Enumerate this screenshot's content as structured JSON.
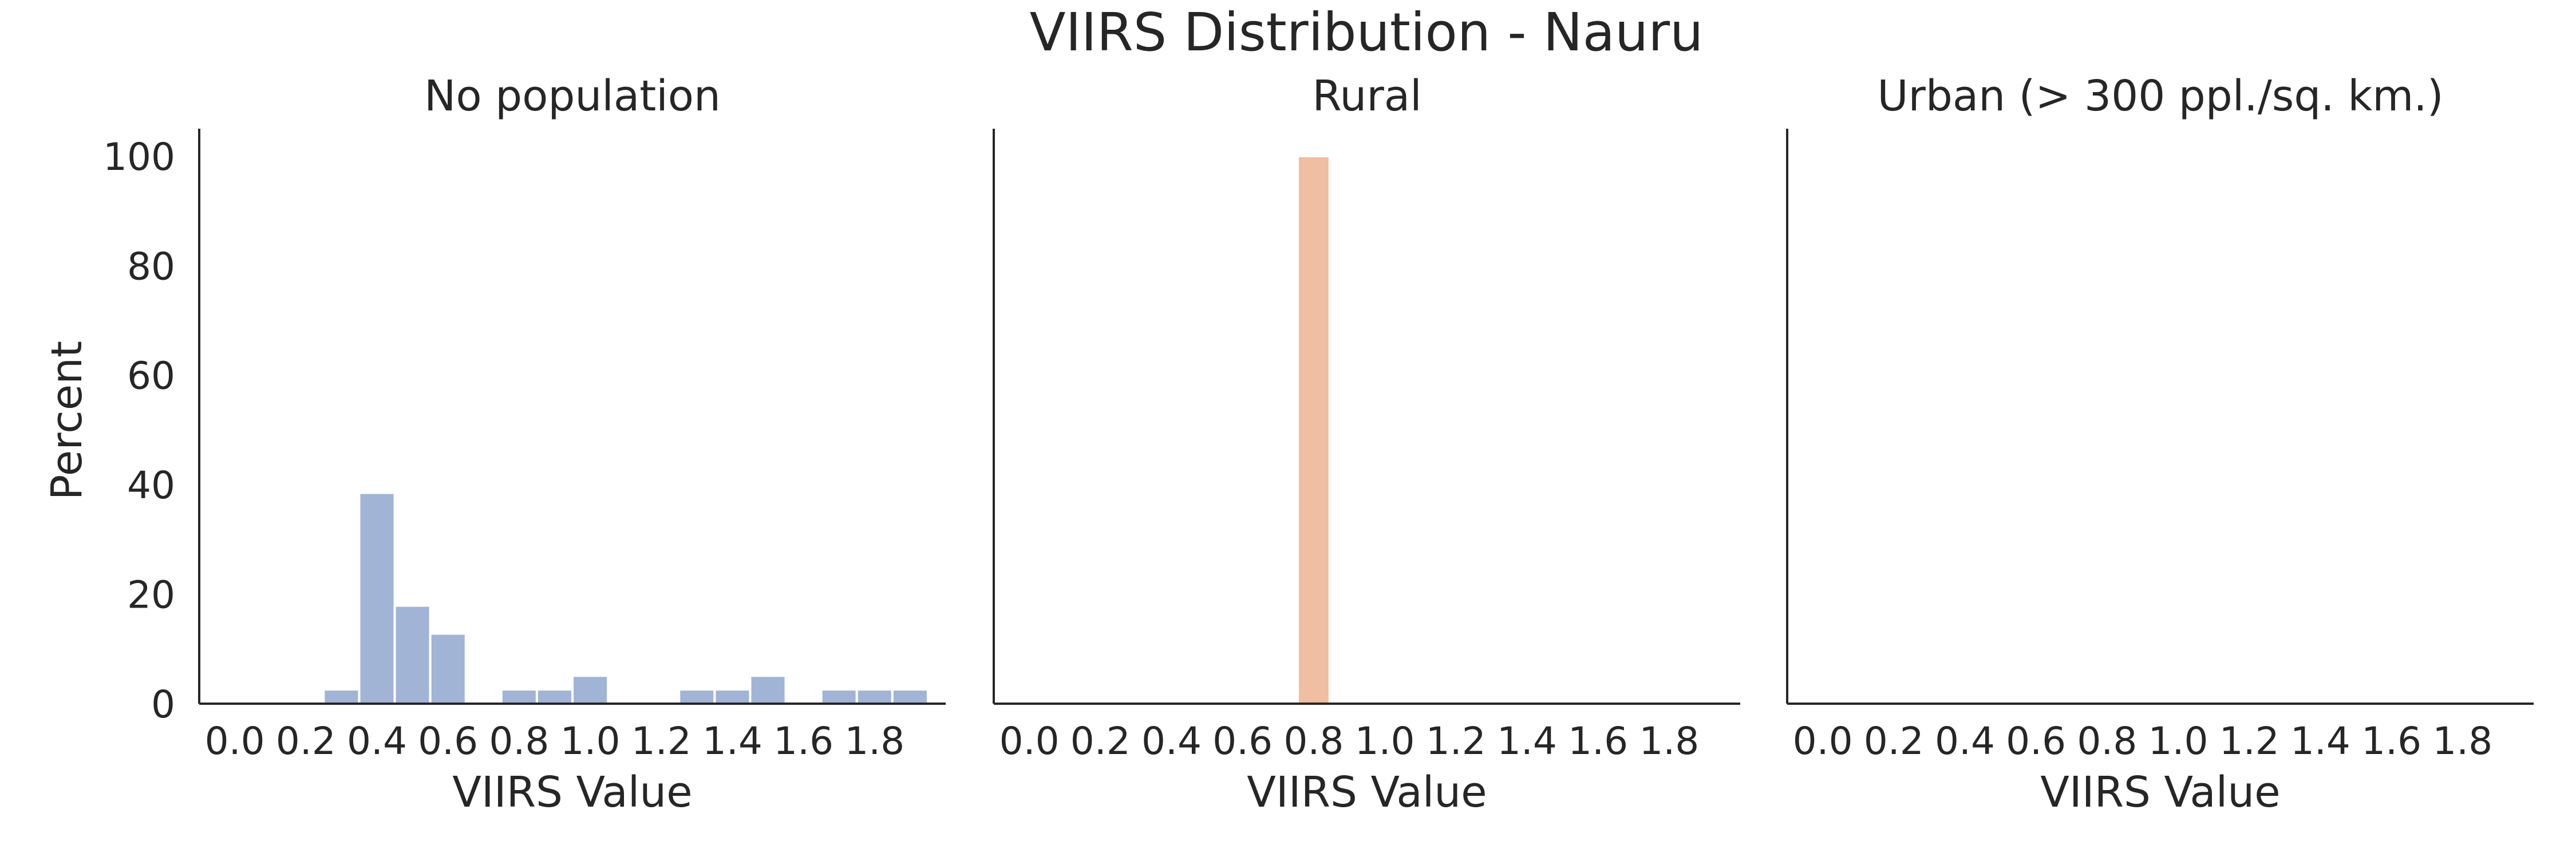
{
  "title": "VIIRS Distribution - Nauru",
  "ylabel": "Percent",
  "chart_data": [
    {
      "type": "bar",
      "title": "No population",
      "xlabel": "VIIRS Value",
      "ylabel": "Percent",
      "color": "#a1b4d6",
      "bin_width": 0.1,
      "x_ticks": [
        "0.0",
        "0.2",
        "0.4",
        "0.6",
        "0.8",
        "1.0",
        "1.2",
        "1.4",
        "1.6",
        "1.8"
      ],
      "y_ticks": [
        "0",
        "20",
        "40",
        "60",
        "80",
        "100"
      ],
      "xlim": [
        -0.1,
        2.0
      ],
      "ylim": [
        0,
        105
      ],
      "grid": false,
      "bins": [
        {
          "x": 0.3,
          "value": 2.6
        },
        {
          "x": 0.4,
          "value": 38.5
        },
        {
          "x": 0.5,
          "value": 17.9
        },
        {
          "x": 0.6,
          "value": 12.8
        },
        {
          "x": 0.8,
          "value": 2.6
        },
        {
          "x": 0.9,
          "value": 2.6
        },
        {
          "x": 1.0,
          "value": 5.1
        },
        {
          "x": 1.3,
          "value": 2.6
        },
        {
          "x": 1.4,
          "value": 2.6
        },
        {
          "x": 1.5,
          "value": 5.1
        },
        {
          "x": 1.7,
          "value": 2.6
        },
        {
          "x": 1.8,
          "value": 2.6
        },
        {
          "x": 1.9,
          "value": 2.6
        }
      ]
    },
    {
      "type": "bar",
      "title": "Rural",
      "xlabel": "VIIRS Value",
      "color": "#f0bea0",
      "bin_width": 0.09,
      "x_ticks": [
        "0.0",
        "0.2",
        "0.4",
        "0.6",
        "0.8",
        "1.0",
        "1.2",
        "1.4",
        "1.6",
        "1.8"
      ],
      "xlim": [
        -0.1,
        2.0
      ],
      "ylim": [
        0,
        105
      ],
      "grid": false,
      "bins": [
        {
          "x": 0.8,
          "value": 100
        }
      ]
    },
    {
      "type": "bar",
      "title": "Urban (> 300 ppl./sq. km.)",
      "xlabel": "VIIRS Value",
      "color": "#8fc3a0",
      "bin_width": 0.1,
      "x_ticks": [
        "0.0",
        "0.2",
        "0.4",
        "0.6",
        "0.8",
        "1.0",
        "1.2",
        "1.4",
        "1.6",
        "1.8"
      ],
      "xlim": [
        -0.1,
        2.0
      ],
      "ylim": [
        0,
        105
      ],
      "grid": false,
      "bins": []
    }
  ]
}
